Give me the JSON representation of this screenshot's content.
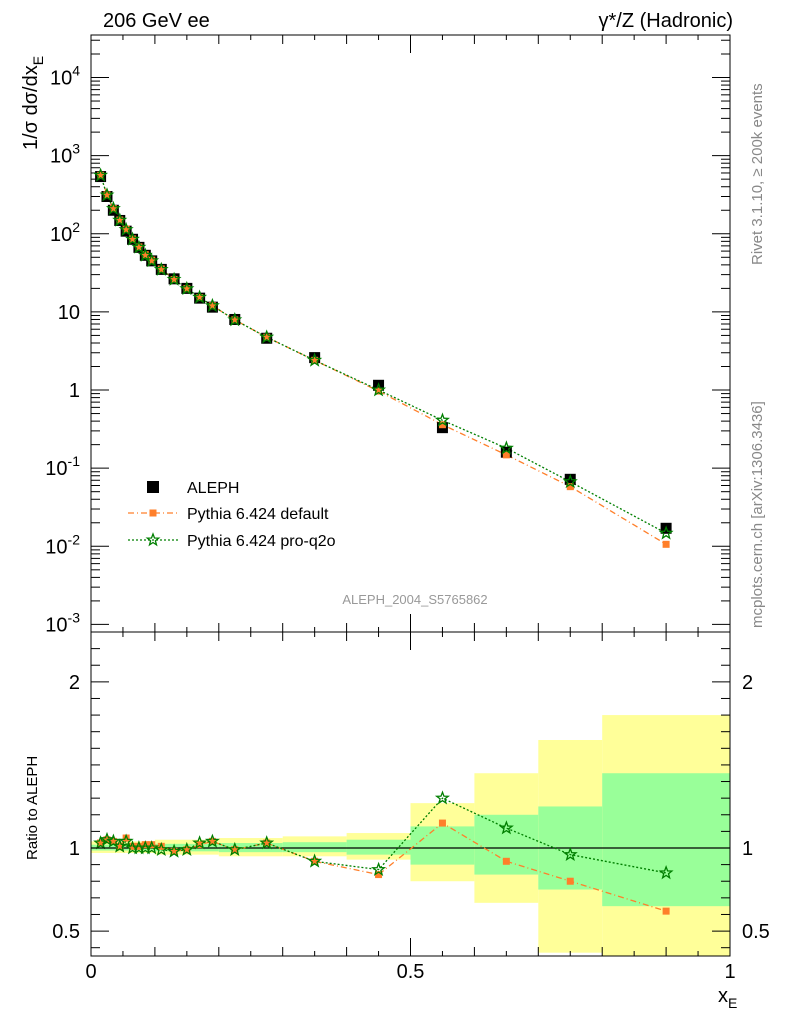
{
  "header": {
    "left": "206 GeV ee",
    "right": "γ*/Z (Hadronic)"
  },
  "side_labels": {
    "rivet": "Rivet 3.1.10, ≥ 200k events",
    "mcplots": "mcplots.cern.ch [arXiv:1306.3436]"
  },
  "watermark": "ALEPH_2004_S5765862",
  "colors": {
    "aleph": "#000000",
    "pythia_default": "#ff7f2a",
    "pythia_proq2o": "#007f00",
    "band_outer": "#ffff99",
    "band_inner": "#99ff99"
  },
  "chart_data": [
    {
      "type": "scatter",
      "title": "",
      "xlabel": "x_E",
      "ylabel": "1/σ dσ/dx_E",
      "yscale": "log",
      "xlim": [
        0,
        1
      ],
      "ylim": [
        0.0008,
        35000
      ],
      "yticks": [
        "10^-3",
        "10^-2",
        "10^-1",
        "1",
        "10",
        "10^2",
        "10^3",
        "10^4"
      ],
      "legend": {
        "placement": "bottom-left",
        "entries": [
          "ALEPH",
          "Pythia 6.424 default",
          "Pythia 6.424 pro-q2o"
        ]
      },
      "x": [
        0.015,
        0.025,
        0.035,
        0.045,
        0.055,
        0.065,
        0.075,
        0.085,
        0.095,
        0.11,
        0.13,
        0.15,
        0.17,
        0.19,
        0.225,
        0.275,
        0.35,
        0.45,
        0.55,
        0.65,
        0.75,
        0.9
      ],
      "series": [
        {
          "name": "ALEPH",
          "marker": "square",
          "values": [
            540,
            300,
            200,
            148,
            108,
            85,
            67,
            53,
            45,
            35,
            26.5,
            20,
            15,
            11.5,
            8.0,
            4.6,
            2.6,
            1.15,
            0.33,
            0.16,
            0.072,
            0.017
          ]
        },
        {
          "name": "Pythia 6.424 default",
          "marker": "square-small",
          "values": [
            560,
            315,
            210,
            150,
            115,
            86,
            68,
            54,
            46,
            35.5,
            26,
            19.8,
            15.3,
            12.0,
            7.9,
            4.75,
            2.4,
            0.97,
            0.36,
            0.148,
            0.058,
            0.0106
          ]
        },
        {
          "name": "Pythia 6.424 pro-q2o",
          "marker": "star",
          "values": [
            560,
            313,
            210,
            149,
            113,
            85,
            67,
            53,
            45,
            34.8,
            26,
            19.8,
            15.4,
            12.0,
            7.9,
            4.75,
            2.4,
            1.0,
            0.41,
            0.18,
            0.067,
            0.0147
          ]
        }
      ]
    },
    {
      "type": "line",
      "title": "",
      "xlabel": "x_E",
      "ylabel": "Ratio to ALEPH",
      "xlim": [
        0,
        1
      ],
      "ylim": [
        0.35,
        2.3
      ],
      "yticks": [
        "0.5",
        "1",
        "2"
      ],
      "xticks": [
        "0",
        "0.5",
        "1"
      ],
      "x": [
        0.015,
        0.025,
        0.035,
        0.045,
        0.055,
        0.065,
        0.075,
        0.085,
        0.095,
        0.11,
        0.13,
        0.15,
        0.17,
        0.19,
        0.225,
        0.275,
        0.35,
        0.45,
        0.55,
        0.65,
        0.75,
        0.9
      ],
      "series": [
        {
          "name": "Pythia 6.424 default",
          "values": [
            1.03,
            1.05,
            1.04,
            1.01,
            1.06,
            1.01,
            1.01,
            1.02,
            1.02,
            1.01,
            0.98,
            0.99,
            1.02,
            1.04,
            0.99,
            1.03,
            0.92,
            0.84,
            1.15,
            0.92,
            0.8,
            0.62
          ]
        },
        {
          "name": "Pythia 6.424 pro-q2o",
          "values": [
            1.03,
            1.05,
            1.04,
            1.01,
            1.04,
            1.0,
            1.0,
            1.0,
            1.0,
            0.99,
            0.98,
            0.99,
            1.03,
            1.04,
            0.99,
            1.03,
            0.92,
            0.87,
            1.3,
            1.12,
            0.96,
            0.85
          ]
        }
      ],
      "bands": [
        {
          "x0": 0.0,
          "x1": 0.1,
          "outer": [
            0.97,
            1.04
          ],
          "inner": [
            0.985,
            1.02
          ]
        },
        {
          "x0": 0.1,
          "x1": 0.2,
          "outer": [
            0.96,
            1.05
          ],
          "inner": [
            0.98,
            1.025
          ]
        },
        {
          "x0": 0.2,
          "x1": 0.3,
          "outer": [
            0.95,
            1.06
          ],
          "inner": [
            0.975,
            1.03
          ]
        },
        {
          "x0": 0.3,
          "x1": 0.4,
          "outer": [
            0.95,
            1.07
          ],
          "inner": [
            0.975,
            1.035
          ]
        },
        {
          "x0": 0.4,
          "x1": 0.5,
          "outer": [
            0.93,
            1.09
          ],
          "inner": [
            0.96,
            1.05
          ]
        },
        {
          "x0": 0.5,
          "x1": 0.6,
          "outer": [
            0.8,
            1.27
          ],
          "inner": [
            0.9,
            1.13
          ]
        },
        {
          "x0": 0.6,
          "x1": 0.7,
          "outer": [
            0.67,
            1.45
          ],
          "inner": [
            0.84,
            1.2
          ]
        },
        {
          "x0": 0.7,
          "x1": 0.8,
          "outer": [
            0.37,
            1.65
          ],
          "inner": [
            0.75,
            1.25
          ]
        },
        {
          "x0": 0.8,
          "x1": 1.0,
          "outer": [
            0.33,
            1.8
          ],
          "inner": [
            0.65,
            1.45
          ]
        }
      ]
    }
  ]
}
